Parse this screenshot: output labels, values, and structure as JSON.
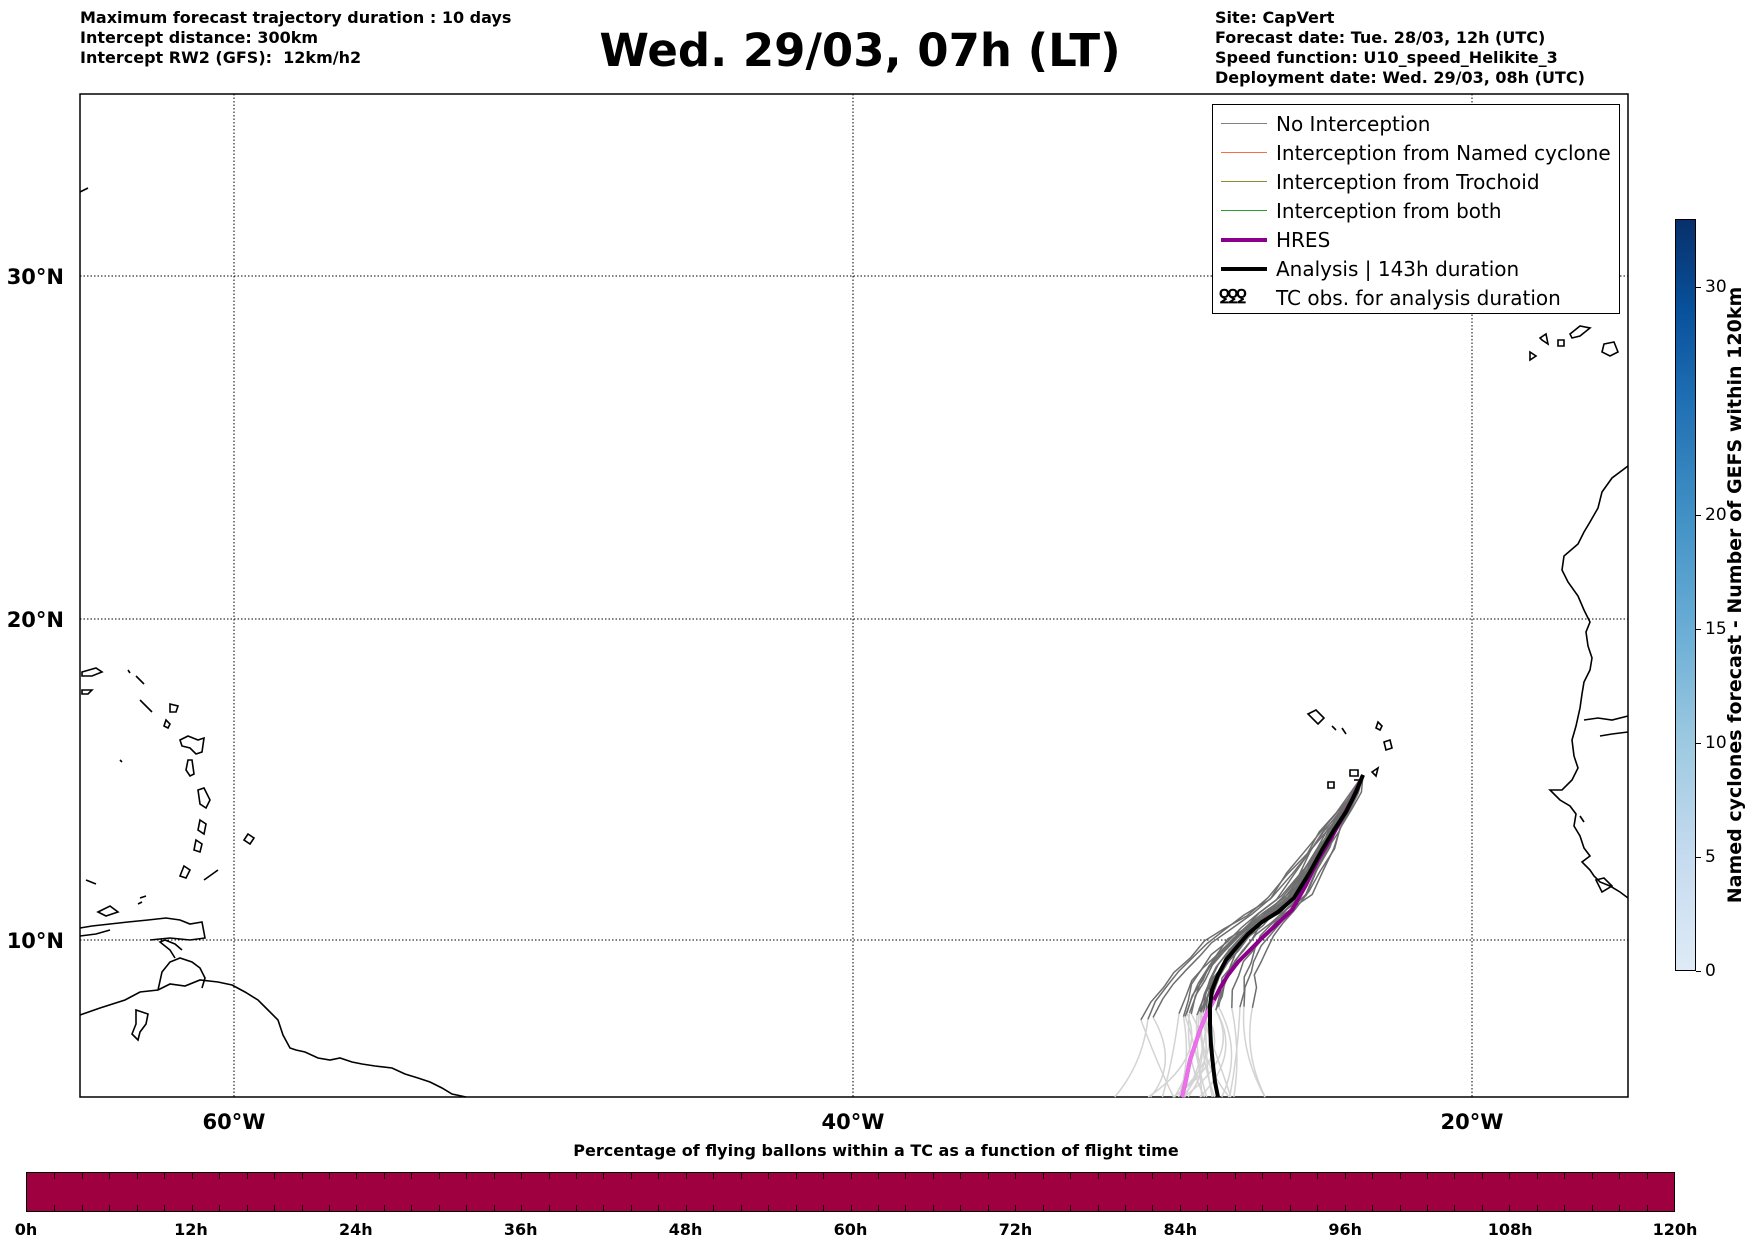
{
  "header": {
    "left_lines": [
      "Maximum forecast trajectory duration : 10 days",
      "Intercept distance: 300km",
      "Intercept RW2 (GFS):  12km/h2"
    ],
    "title": "Wed. 29/03, 07h (LT)",
    "right_lines": [
      "Site: CapVert",
      "Forecast date: Tue. 28/03, 12h (UTC)",
      "Speed function: U10_speed_Helikite_3",
      "Deployment date: Wed. 29/03, 08h (UTC)"
    ]
  },
  "map": {
    "lat_labels": [
      "30°N",
      "20°N",
      "10°N"
    ],
    "lon_labels": [
      "60°W",
      "40°W",
      "20°W"
    ],
    "lat_range": [
      5.4,
      34.8
    ],
    "lon_range": [
      -65,
      -15
    ],
    "grid": "dotted"
  },
  "legend": {
    "items": [
      {
        "label": "No Interception",
        "color": "#808080",
        "style": "thin"
      },
      {
        "label": "Interception from Named cyclone",
        "color": "#f46d43",
        "style": "thin"
      },
      {
        "label": "Interception from Trochoid",
        "color": "#8c8c30",
        "style": "thin"
      },
      {
        "label": "Interception from both",
        "color": "#2ca02c",
        "style": "thin"
      },
      {
        "label": "HRES",
        "color": "#8b008b",
        "style": "thick"
      },
      {
        "label": "Analysis | 143h duration",
        "color": "#000000",
        "style": "thick"
      },
      {
        "label": "TC obs. for analysis duration",
        "color": "#000000",
        "style": "symbol",
        "symbol": "ꝿꝿꝿ"
      }
    ]
  },
  "colorbar": {
    "title": "Named cyclones forecast - Number of GEFS within 120km",
    "ticks": [
      "0",
      "5",
      "10",
      "15",
      "20",
      "30"
    ],
    "scale": "blues"
  },
  "bottom": {
    "title": "Percentage of flying ballons within a TC as a function of flight time",
    "bar_color": "#9e0040",
    "time_labels": [
      "0h",
      "12h",
      "24h",
      "36h",
      "48h",
      "60h",
      "72h",
      "84h",
      "96h",
      "108h",
      "120h"
    ]
  }
}
